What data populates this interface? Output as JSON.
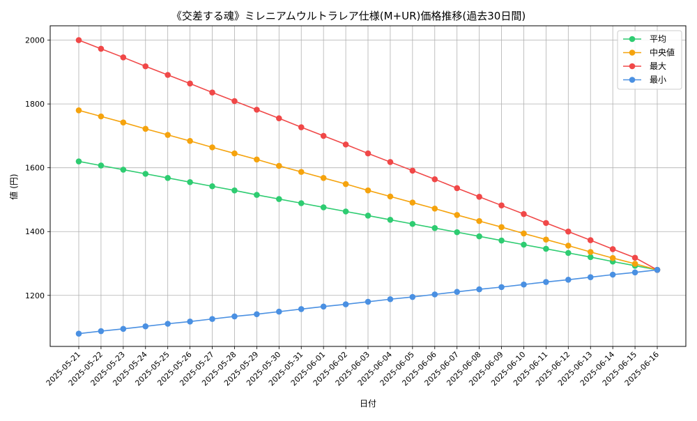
{
  "chart_data": {
    "type": "line",
    "title": "《交差する魂》ミレニアムウルトラレア仕様(M+UR)価格推移(過去30日間)",
    "xlabel": "日付",
    "ylabel": "値 (円)",
    "categories": [
      "2025-05-21",
      "2025-05-22",
      "2025-05-23",
      "2025-05-24",
      "2025-05-25",
      "2025-05-26",
      "2025-05-27",
      "2025-05-28",
      "2025-05-29",
      "2025-05-30",
      "2025-05-31",
      "2025-06-01",
      "2025-06-02",
      "2025-06-03",
      "2025-06-04",
      "2025-06-05",
      "2025-06-06",
      "2025-06-07",
      "2025-06-08",
      "2025-06-09",
      "2025-06-10",
      "2025-06-11",
      "2025-06-12",
      "2025-06-13",
      "2025-06-14",
      "2025-06-15",
      "2025-06-16"
    ],
    "ylim": [
      1040,
      2045
    ],
    "yticks": [
      1200,
      1400,
      1600,
      1800,
      2000
    ],
    "grid": true,
    "legend_position": "top-right",
    "series": [
      {
        "name": "平均",
        "color": "#2ecc71",
        "values": [
          1620,
          1607,
          1594,
          1581,
          1568,
          1555,
          1542,
          1529,
          1515,
          1502,
          1489,
          1476,
          1463,
          1450,
          1437,
          1424,
          1411,
          1398,
          1385,
          1372,
          1359,
          1346,
          1333,
          1320,
          1306,
          1293,
          1280
        ]
      },
      {
        "name": "中央値",
        "color": "#f5a30d",
        "values": [
          1780,
          1761,
          1742,
          1722,
          1703,
          1684,
          1664,
          1645,
          1626,
          1606,
          1587,
          1568,
          1549,
          1529,
          1510,
          1491,
          1472,
          1452,
          1433,
          1414,
          1394,
          1375,
          1356,
          1336,
          1317,
          1299,
          1280
        ]
      },
      {
        "name": "最大",
        "color": "#f04848",
        "values": [
          2000,
          1973,
          1946,
          1918,
          1891,
          1864,
          1836,
          1809,
          1782,
          1755,
          1727,
          1700,
          1673,
          1645,
          1618,
          1591,
          1564,
          1536,
          1509,
          1482,
          1455,
          1427,
          1400,
          1373,
          1345,
          1318,
          1280
        ]
      },
      {
        "name": "最小",
        "color": "#4a90e2",
        "values": [
          1080,
          1088,
          1095,
          1103,
          1111,
          1118,
          1126,
          1134,
          1141,
          1149,
          1157,
          1165,
          1172,
          1180,
          1188,
          1195,
          1203,
          1211,
          1219,
          1226,
          1234,
          1242,
          1249,
          1257,
          1265,
          1272,
          1280
        ]
      }
    ]
  }
}
